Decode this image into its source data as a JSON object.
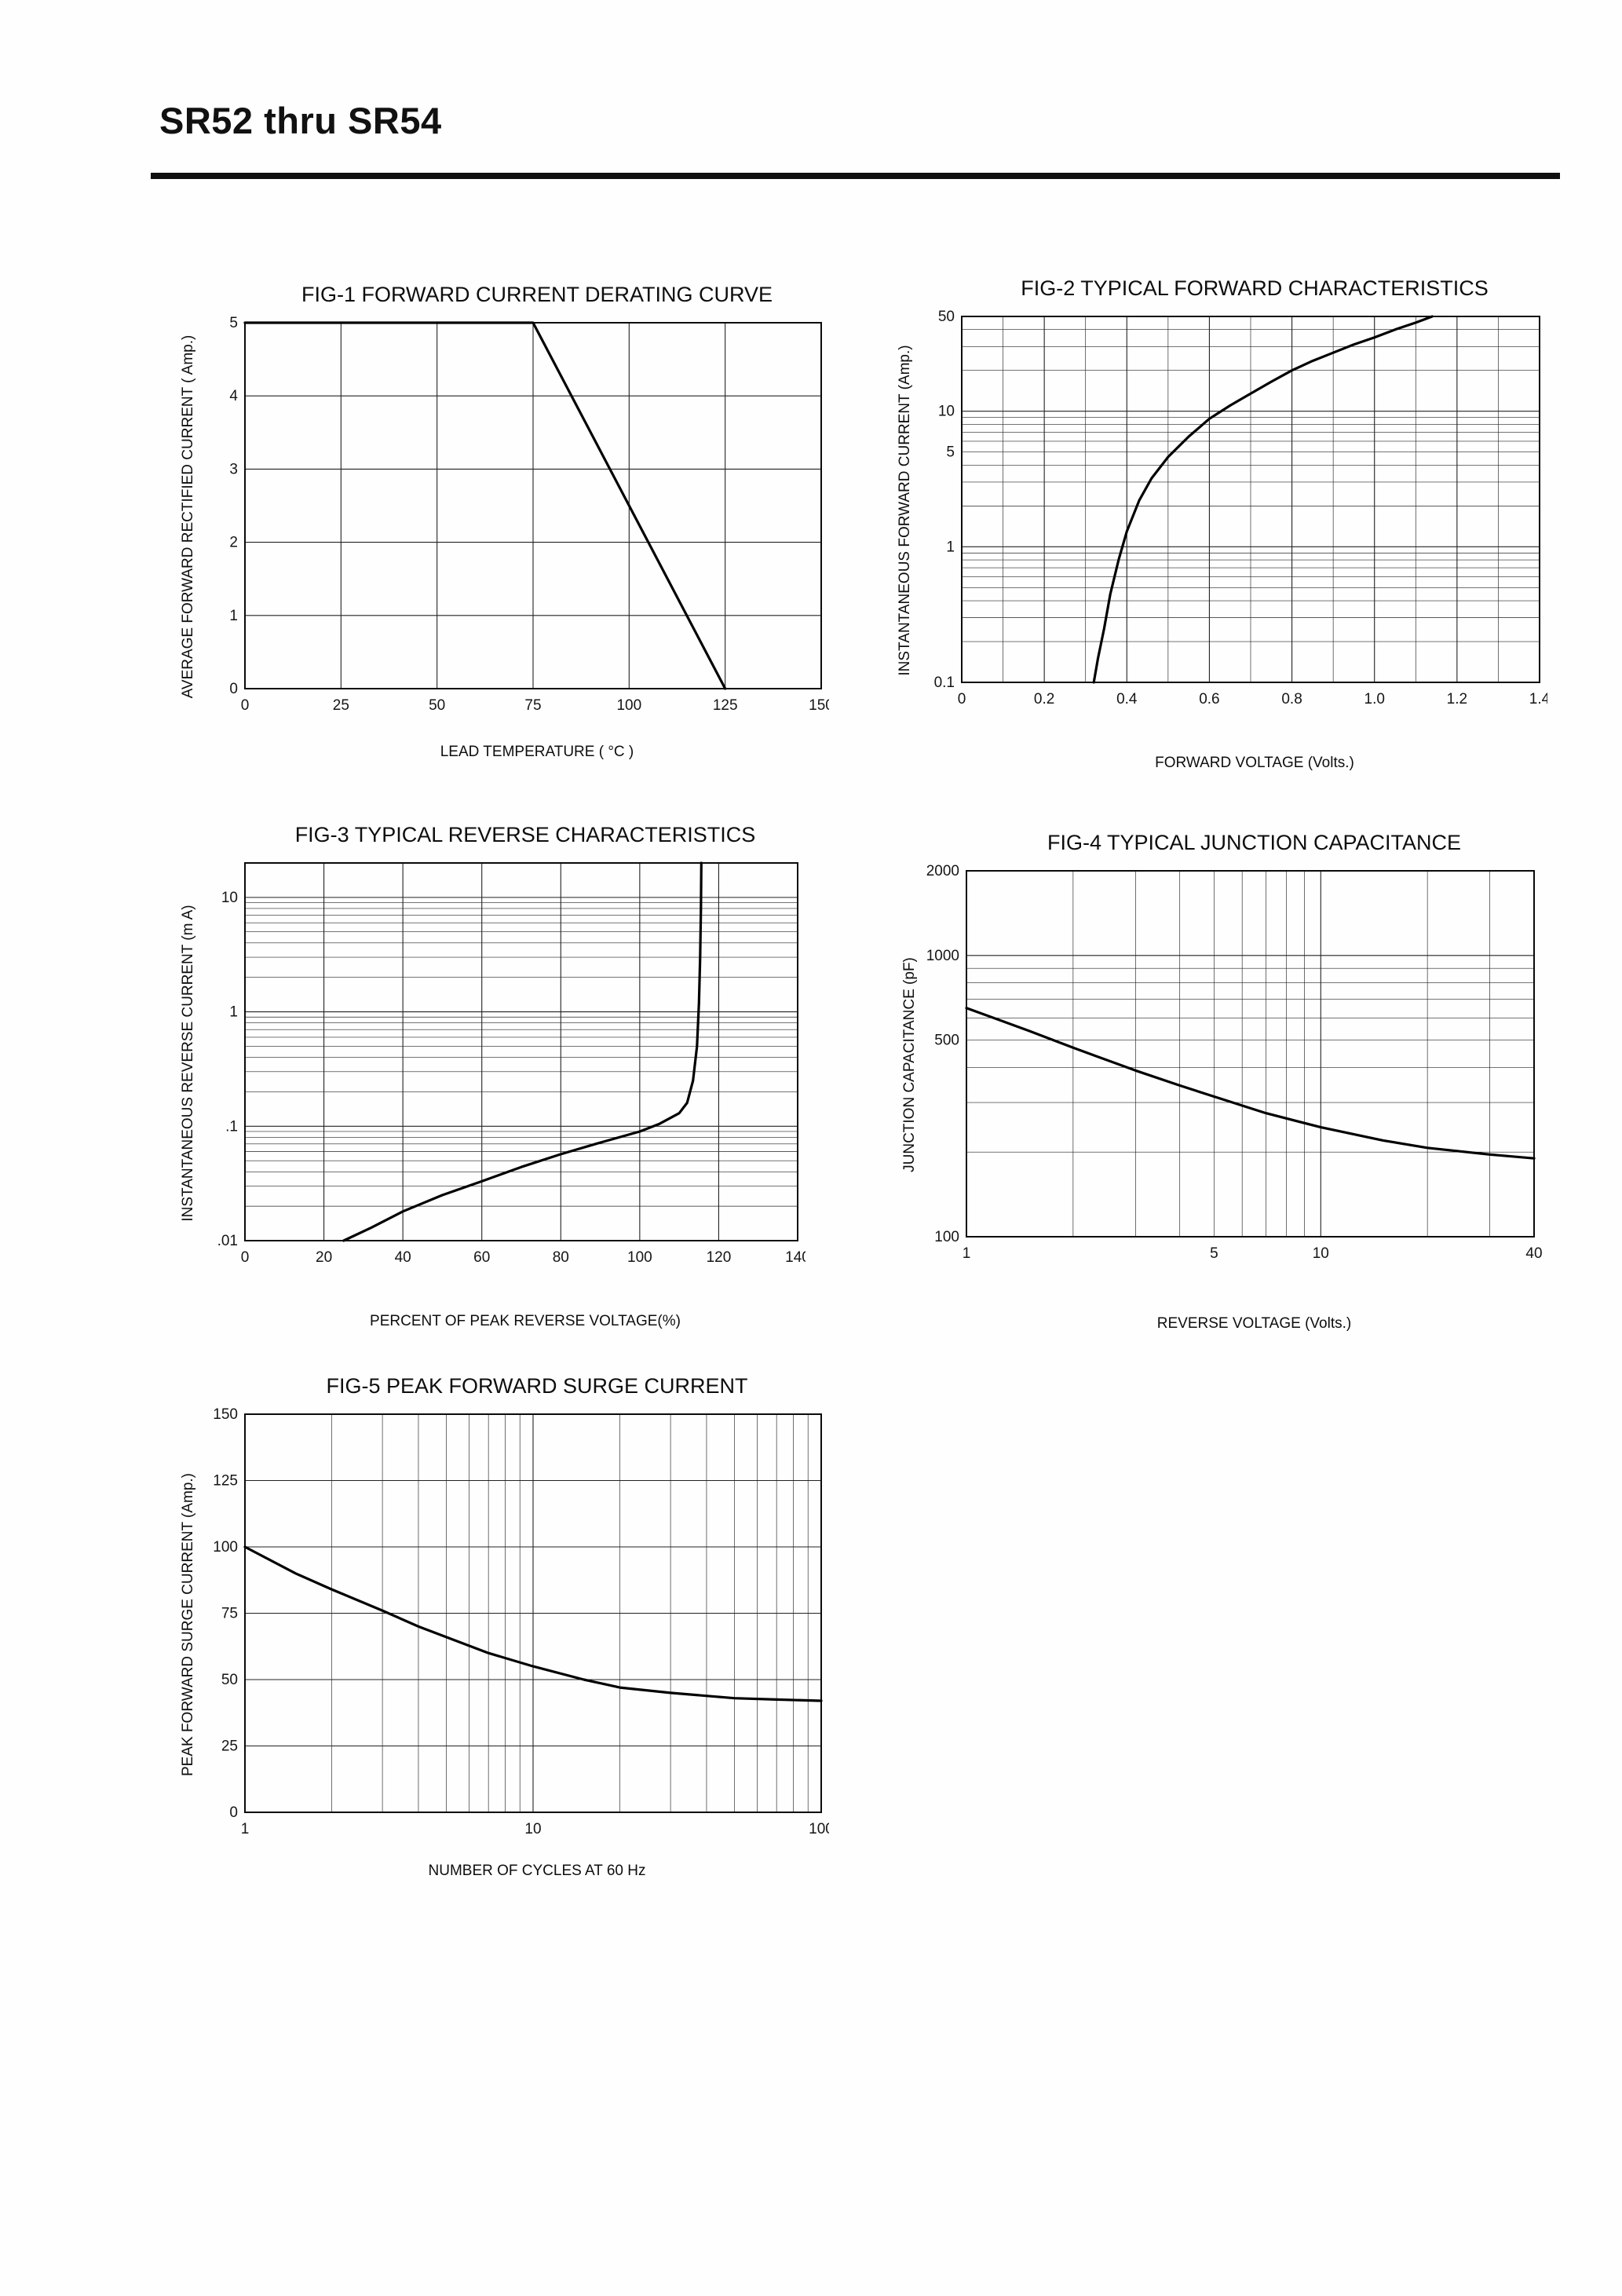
{
  "header": {
    "title": "SR52 thru SR54"
  },
  "chart_data": [
    {
      "id": "fig-1",
      "type": "line",
      "title": "FIG-1 FORWARD CURRENT DERATING CURVE",
      "xlabel": "LEAD TEMPERATURE ( °C )",
      "ylabel": "AVERAGE FORWARD RECTIFIED CURRENT ( Amp.)",
      "xscale": "linear",
      "yscale": "linear",
      "xlim": [
        0,
        150
      ],
      "ylim": [
        0,
        5
      ],
      "grid": "on",
      "legend": "none",
      "xticks": {
        "values": [
          0,
          25,
          50,
          75,
          100,
          125,
          150
        ],
        "labels": [
          "0",
          "25",
          "50",
          "75",
          "100",
          "125",
          "150"
        ]
      },
      "yticks": {
        "values": [
          0,
          1,
          2,
          3,
          4,
          5
        ],
        "labels": [
          "0",
          "1",
          "2",
          "3",
          "4",
          "5"
        ]
      },
      "series": [
        {
          "name": "forward-current-derating-curve",
          "points": [
            [
              0,
              5
            ],
            [
              75,
              5
            ],
            [
              125,
              0
            ]
          ]
        }
      ]
    },
    {
      "id": "fig-2",
      "type": "line",
      "title": "FIG-2 TYPICAL FORWARD CHARACTERISTICS",
      "xlabel": "FORWARD VOLTAGE (Volts.)",
      "ylabel": "INSTANTANEOUS FORWARD CURRENT (Amp.)",
      "xscale": "linear",
      "yscale": "log",
      "xlim": [
        0,
        1.4
      ],
      "ylim": [
        0.1,
        50
      ],
      "xminor": 0.1,
      "grid": "on",
      "legend": "none",
      "xticks": {
        "values": [
          0,
          0.2,
          0.4,
          0.6,
          0.8,
          1.0,
          1.2,
          1.4
        ],
        "labels": [
          "0",
          "0.2",
          "0.4",
          "0.6",
          "0.8",
          "1.0",
          "1.2",
          "1.4"
        ]
      },
      "yticks": {
        "values": [
          0.1,
          1,
          5,
          10,
          50
        ],
        "labels": [
          "0.1",
          "1",
          "5",
          "10",
          "50"
        ]
      },
      "series": [
        {
          "name": "typical-forward-characteristic",
          "points": [
            [
              0.32,
              0.1
            ],
            [
              0.33,
              0.15
            ],
            [
              0.345,
              0.25
            ],
            [
              0.36,
              0.45
            ],
            [
              0.38,
              0.8
            ],
            [
              0.4,
              1.3
            ],
            [
              0.43,
              2.2
            ],
            [
              0.46,
              3.2
            ],
            [
              0.5,
              4.6
            ],
            [
              0.55,
              6.5
            ],
            [
              0.6,
              8.8
            ],
            [
              0.65,
              11
            ],
            [
              0.7,
              13.5
            ],
            [
              0.75,
              16.5
            ],
            [
              0.8,
              20
            ],
            [
              0.85,
              23.5
            ],
            [
              0.9,
              27
            ],
            [
              0.95,
              31
            ],
            [
              1.0,
              35
            ],
            [
              1.05,
              40
            ],
            [
              1.1,
              45
            ],
            [
              1.14,
              50
            ]
          ]
        }
      ]
    },
    {
      "id": "fig-3",
      "type": "line",
      "title": "FIG-3 TYPICAL REVERSE CHARACTERISTICS",
      "xlabel": "PERCENT OF PEAK REVERSE VOLTAGE(%)",
      "ylabel": "INSTANTANEOUS REVERSE CURRENT (m A)",
      "xscale": "linear",
      "yscale": "log",
      "xlim": [
        0,
        140
      ],
      "ylim": [
        0.01,
        20
      ],
      "grid": "on",
      "legend": "none",
      "xticks": {
        "values": [
          0,
          20,
          40,
          60,
          80,
          100,
          120,
          140
        ],
        "labels": [
          "0",
          "20",
          "40",
          "60",
          "80",
          "100",
          "120",
          "140"
        ]
      },
      "yticks": {
        "values": [
          0.01,
          0.1,
          1,
          10
        ],
        "labels": [
          ".01",
          ".1",
          "1",
          "10"
        ]
      },
      "series": [
        {
          "name": "typical-reverse-characteristic",
          "points": [
            [
              25,
              0.01
            ],
            [
              32,
              0.013
            ],
            [
              40,
              0.018
            ],
            [
              50,
              0.025
            ],
            [
              60,
              0.033
            ],
            [
              70,
              0.044
            ],
            [
              80,
              0.057
            ],
            [
              90,
              0.072
            ],
            [
              100,
              0.09
            ],
            [
              105,
              0.105
            ],
            [
              110,
              0.13
            ],
            [
              112,
              0.16
            ],
            [
              113.5,
              0.25
            ],
            [
              114.5,
              0.5
            ],
            [
              115,
              1.2
            ],
            [
              115.3,
              3
            ],
            [
              115.5,
              8
            ],
            [
              115.6,
              20
            ]
          ]
        }
      ]
    },
    {
      "id": "fig-4",
      "type": "line",
      "title": "FIG-4 TYPICAL JUNCTION CAPACITANCE",
      "xlabel": "REVERSE VOLTAGE (Volts.)",
      "ylabel": "JUNCTION CAPACITANCE (pF)",
      "xscale": "log",
      "yscale": "log",
      "xlim": [
        1,
        40
      ],
      "ylim": [
        100,
        2000
      ],
      "grid": "on",
      "legend": "none",
      "xticks": {
        "values": [
          1,
          5,
          10,
          40
        ],
        "labels": [
          "1",
          "5",
          "10",
          "40"
        ]
      },
      "yticks": {
        "values": [
          100,
          500,
          1000,
          2000
        ],
        "labels": [
          "100",
          "500",
          "1000",
          "2000"
        ]
      },
      "series": [
        {
          "name": "typical-junction-capacitance",
          "points": [
            [
              1,
              650
            ],
            [
              1.5,
              540
            ],
            [
              2,
              470
            ],
            [
              3,
              390
            ],
            [
              4,
              345
            ],
            [
              5,
              315
            ],
            [
              7,
              275
            ],
            [
              10,
              245
            ],
            [
              15,
              220
            ],
            [
              20,
              207
            ],
            [
              30,
              196
            ],
            [
              40,
              190
            ]
          ]
        }
      ]
    },
    {
      "id": "fig-5",
      "type": "line",
      "title": "FIG-5 PEAK FORWARD SURGE CURRENT",
      "xlabel": "NUMBER OF CYCLES AT 60 Hz",
      "ylabel": "PEAK FORWARD SURGE CURRENT (Amp.)",
      "xscale": "log",
      "yscale": "linear",
      "xlim": [
        1,
        100
      ],
      "ylim": [
        0,
        150
      ],
      "grid": "on",
      "legend": "none",
      "xticks": {
        "values": [
          1,
          10,
          100
        ],
        "labels": [
          "1",
          "10",
          "100"
        ]
      },
      "yticks": {
        "values": [
          0,
          25,
          50,
          75,
          100,
          125,
          150
        ],
        "labels": [
          "0",
          "25",
          "50",
          "75",
          "100",
          "125",
          "150"
        ]
      },
      "series": [
        {
          "name": "peak-forward-surge-current",
          "points": [
            [
              1,
              100
            ],
            [
              1.5,
              90
            ],
            [
              2,
              84
            ],
            [
              3,
              76
            ],
            [
              4,
              70
            ],
            [
              5,
              66
            ],
            [
              7,
              60
            ],
            [
              10,
              55
            ],
            [
              15,
              50
            ],
            [
              20,
              47
            ],
            [
              30,
              45
            ],
            [
              50,
              43
            ],
            [
              70,
              42.5
            ],
            [
              100,
              42
            ]
          ]
        }
      ]
    }
  ]
}
